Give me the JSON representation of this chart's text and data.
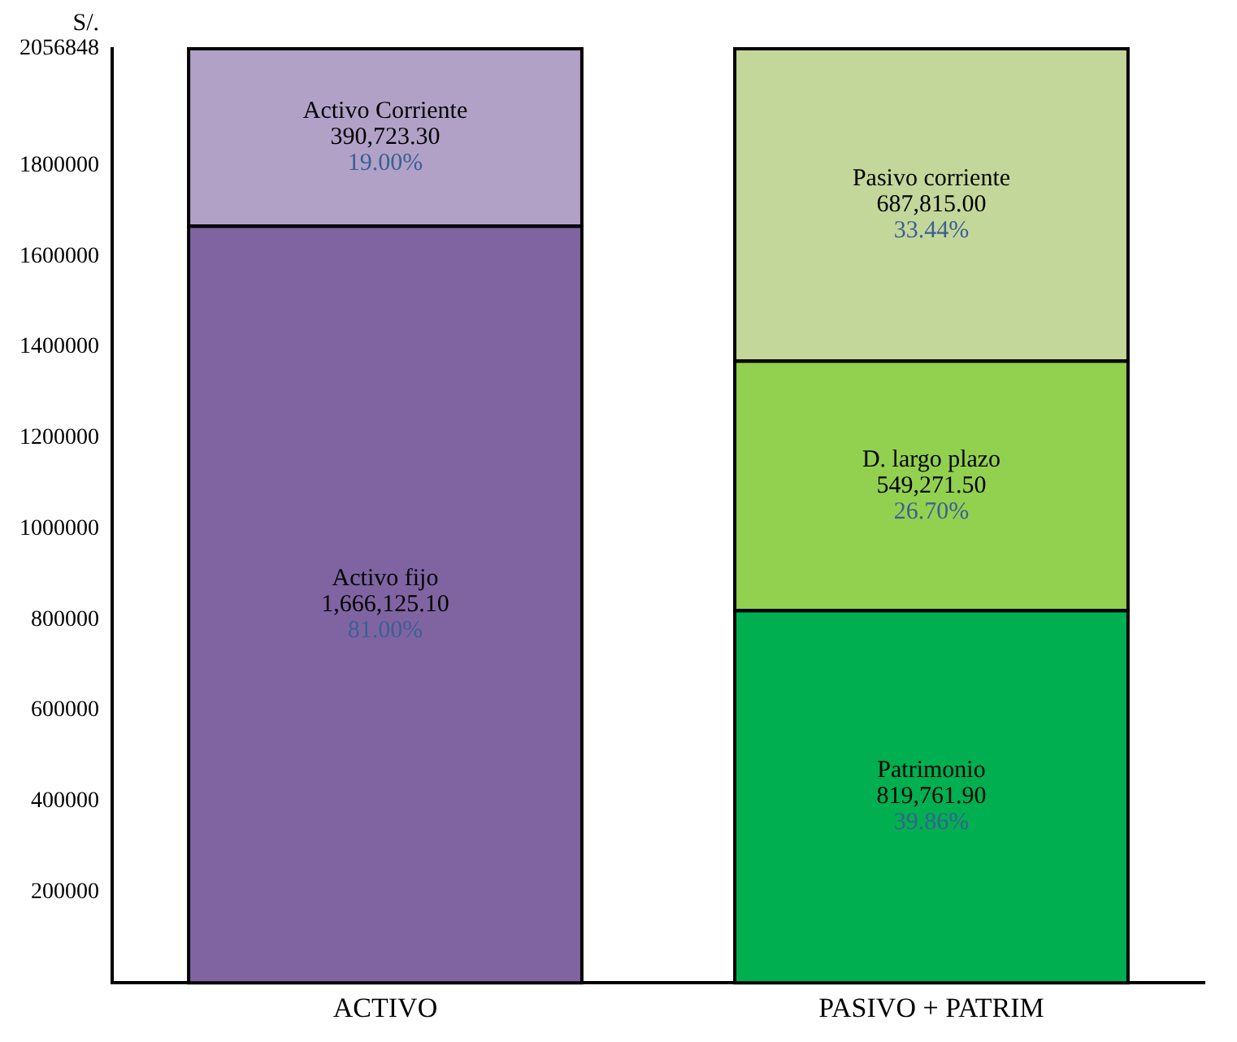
{
  "chart_data": {
    "type": "bar",
    "stacked": true,
    "ylabel": "S/.",
    "categories": [
      "ACTIVO",
      "PASIVO + PATRIM"
    ],
    "series": [
      {
        "name": "Activo fijo",
        "color": "#8064a2",
        "values": [
          1666125.1,
          null
        ],
        "value_labels": [
          "1,666,125.10",
          null
        ]
      },
      {
        "name": "Activo Corriente",
        "color": "#b2a1c7",
        "values": [
          390723.3,
          null
        ],
        "value_labels": [
          "390,723.30",
          null
        ]
      },
      {
        "name": "Patrimonio",
        "color": "#00b050",
        "values": [
          null,
          819761.9
        ],
        "value_labels": [
          null,
          "819,761.90"
        ]
      },
      {
        "name": "D. largo plazo",
        "color": "#92d050",
        "values": [
          null,
          549271.5
        ],
        "value_labels": [
          null,
          "549,271.50"
        ]
      },
      {
        "name": "Pasivo corriente",
        "color": "#c4d79b",
        "values": [
          null,
          687815.0
        ],
        "value_labels": [
          null,
          "687,815.00"
        ]
      }
    ],
    "annotations": [
      "81.00%",
      "19.00%",
      "39.86%",
      "26.70%",
      "33.44%"
    ],
    "ylim": [
      0,
      2056848
    ],
    "yticks": [
      200000,
      400000,
      600000,
      800000,
      1000000,
      1200000,
      1400000,
      1600000,
      1800000,
      2056848
    ],
    "grid": false,
    "legend": false
  }
}
